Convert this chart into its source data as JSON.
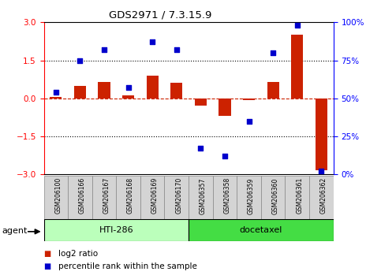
{
  "title": "GDS2971 / 7.3.15.9",
  "samples": [
    "GSM206100",
    "GSM206166",
    "GSM206167",
    "GSM206168",
    "GSM206169",
    "GSM206170",
    "GSM206357",
    "GSM206358",
    "GSM206359",
    "GSM206360",
    "GSM206361",
    "GSM206362"
  ],
  "log2_ratio": [
    0.05,
    0.5,
    0.65,
    0.12,
    0.9,
    0.6,
    -0.3,
    -0.7,
    -0.08,
    0.65,
    2.5,
    -2.85
  ],
  "percentile_rank": [
    54,
    75,
    82,
    57,
    87,
    82,
    17,
    12,
    35,
    80,
    98,
    2
  ],
  "bar_color": "#cc2200",
  "dot_color": "#0000cc",
  "zero_line_color": "#cc2200",
  "ylim_left": [
    -3,
    3
  ],
  "yticks_left": [
    -3,
    -1.5,
    0,
    1.5,
    3
  ],
  "ylim_right": [
    0,
    100
  ],
  "yticks_right": [
    0,
    25,
    50,
    75,
    100
  ],
  "ytick_labels_right": [
    "0%",
    "25%",
    "50%",
    "75%",
    "100%"
  ],
  "group1_label": "HTI-286",
  "group1_color": "#bbffbb",
  "group2_label": "docetaxel",
  "group2_color": "#44dd44",
  "agent_label": "agent",
  "legend_log2": "log2 ratio",
  "legend_pct": "percentile rank within the sample",
  "bg_color": "#ffffff",
  "label_bg": "#d4d4d4"
}
